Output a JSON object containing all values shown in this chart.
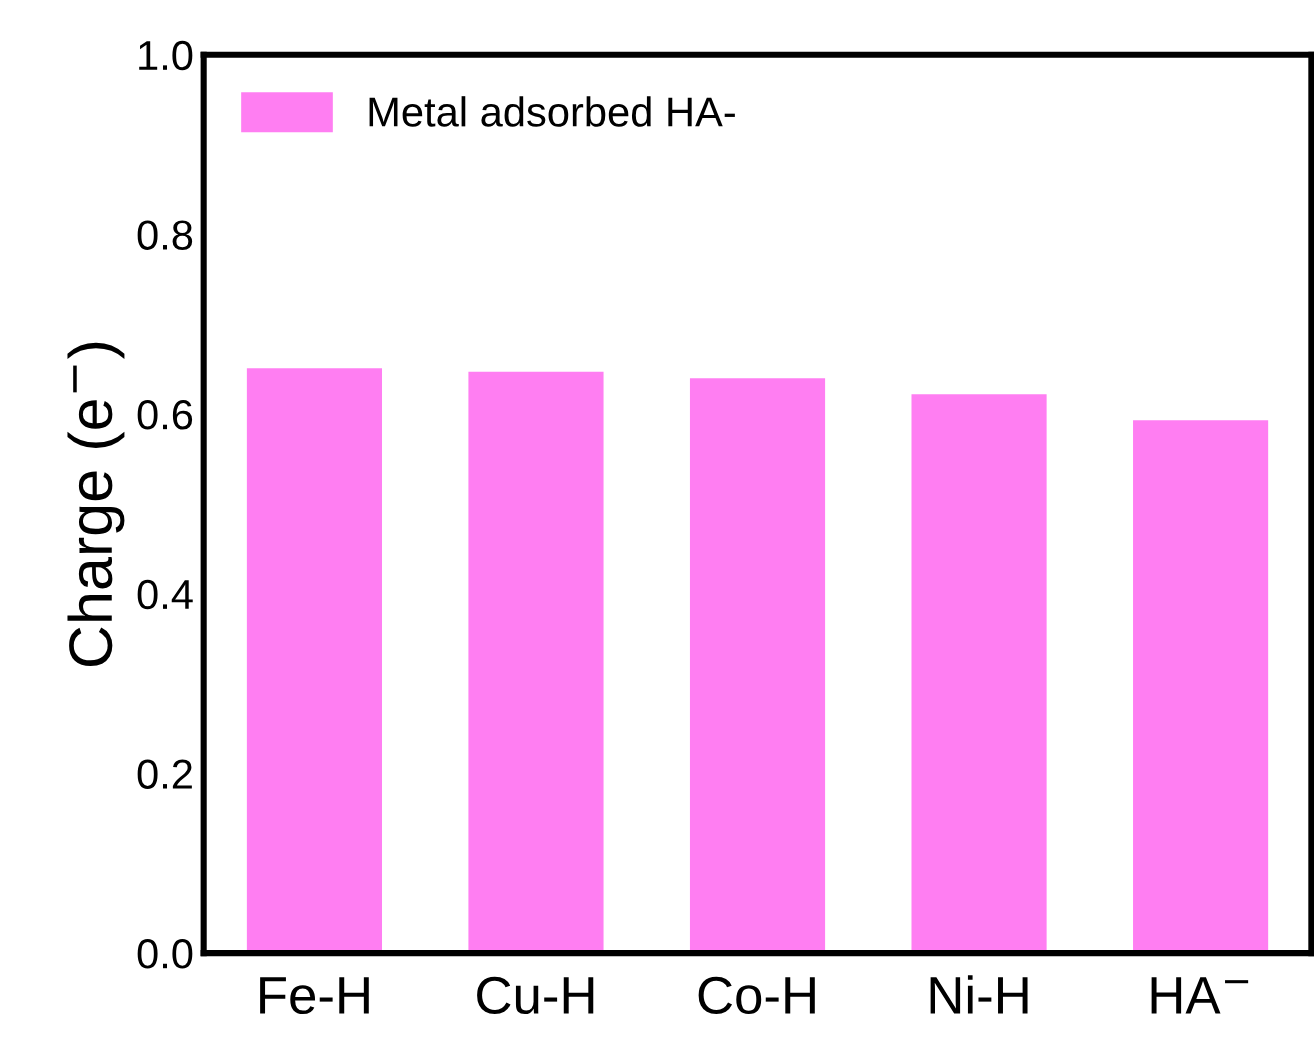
{
  "chart_data": {
    "type": "bar",
    "ylabel": "Charge (e$^{−}$)",
    "categories": [
      "Fe-H",
      "Cu-H",
      "Co-H",
      "Ni-H",
      "HA$^{−}$"
    ],
    "series": [
      {
        "name": "Metal adsorbed HA-",
        "color": "#ff7ef2",
        "values": [
          0.651,
          0.647,
          0.64,
          0.622,
          0.593
        ]
      }
    ],
    "ylim": [
      0,
      1.0
    ],
    "yticks": [
      {
        "value": 0,
        "label": "0.0"
      },
      0.2,
      0.4,
      0.6,
      0.8,
      {
        "value": 1.0,
        "label": "1.0"
      }
    ],
    "grid": false,
    "legend": "top left"
  }
}
